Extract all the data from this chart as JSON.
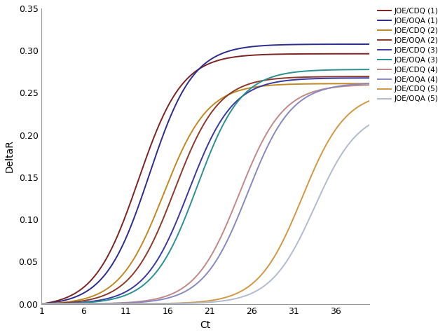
{
  "title": "",
  "xlabel": "Ct",
  "ylabel": "DeltaR",
  "xlim": [
    1,
    40
  ],
  "ylim": [
    0,
    0.35
  ],
  "xticks": [
    1,
    6,
    11,
    16,
    21,
    26,
    31,
    36
  ],
  "yticks": [
    0,
    0.05,
    0.1,
    0.15,
    0.2,
    0.25,
    0.3,
    0.35
  ],
  "series": [
    {
      "label": "JOE/CDQ (1)",
      "color": "#7B2222",
      "midpoint": 12.5,
      "k": 0.38,
      "plateau": 0.3
    },
    {
      "label": "JOE/OQA (1)",
      "color": "#2B2B8E",
      "midpoint": 13.8,
      "k": 0.38,
      "plateau": 0.31
    },
    {
      "label": "JOE/CDQ (2)",
      "color": "#C08820",
      "midpoint": 15.5,
      "k": 0.38,
      "plateau": 0.262
    },
    {
      "label": "JOE/OQA (2)",
      "color": "#8B3828",
      "midpoint": 16.8,
      "k": 0.38,
      "plateau": 0.27
    },
    {
      "label": "JOE/CDQ (3)",
      "color": "#3838A0",
      "midpoint": 18.5,
      "k": 0.38,
      "plateau": 0.268
    },
    {
      "label": "JOE/OQA (3)",
      "color": "#2B9090",
      "midpoint": 19.5,
      "k": 0.38,
      "plateau": 0.278
    },
    {
      "label": "JOE/CDQ (4)",
      "color": "#C08888",
      "midpoint": 24.5,
      "k": 0.38,
      "plateau": 0.26
    },
    {
      "label": "JOE/OQA (4)",
      "color": "#8888C0",
      "midpoint": 25.5,
      "k": 0.38,
      "plateau": 0.262
    },
    {
      "label": "JOE/CDQ (5)",
      "color": "#D09840",
      "midpoint": 32.0,
      "k": 0.38,
      "plateau": 0.252
    },
    {
      "label": "JOE/OQA (5)",
      "color": "#B0BAD0",
      "midpoint": 33.5,
      "k": 0.38,
      "plateau": 0.23
    }
  ],
  "background_color": "#FFFFFF",
  "legend_fontsize": 7.5,
  "axis_fontsize": 10,
  "tick_fontsize": 9,
  "line_width": 1.4
}
